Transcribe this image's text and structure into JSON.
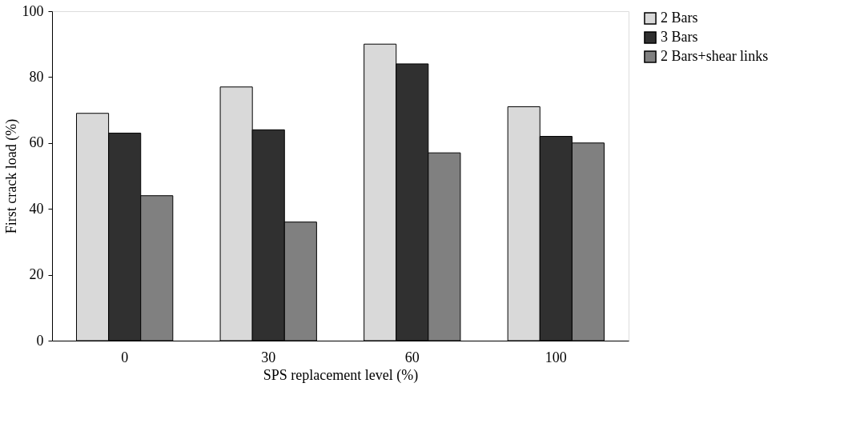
{
  "chart_data": {
    "type": "bar",
    "xlabel": "SPS replacement level (%)",
    "ylabel": "First crack load (%)",
    "categories": [
      "0",
      "30",
      "60",
      "100"
    ],
    "series": [
      {
        "name": "2 Bars",
        "color": "#d9d9d9",
        "values": [
          69,
          77,
          90,
          71
        ]
      },
      {
        "name": "3 Bars",
        "color": "#303030",
        "values": [
          63,
          64,
          84,
          62
        ]
      },
      {
        "name": "2 Bars+shear links",
        "color": "#808080",
        "values": [
          44,
          36,
          57,
          60
        ]
      }
    ],
    "ylim": [
      0,
      100
    ],
    "yticks": [
      0,
      20,
      40,
      60,
      80,
      100
    ],
    "grid": false,
    "legend": "right"
  }
}
